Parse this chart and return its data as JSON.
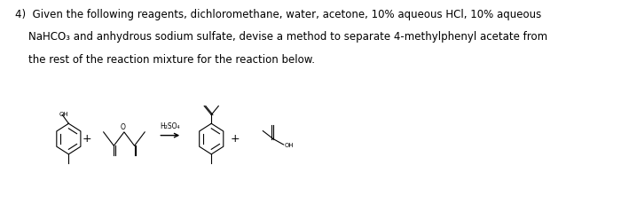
{
  "background_color": "#ffffff",
  "text_color": "#000000",
  "line_color": "#000000",
  "line_width": 0.8,
  "font_size_body": 8.5,
  "reagent_label": "H₂SO₄",
  "title_line1": "4)  Given the following reagents, dichloromethane, water, acetone, 10% aqueous HCl, 10% aqueous",
  "title_line2": "    NaHCO₃ and anhydrous sodium sulfate, devise a method to separate 4-methylphenyl acetate from",
  "title_line3": "    the rest of the reaction mixture for the reaction below."
}
